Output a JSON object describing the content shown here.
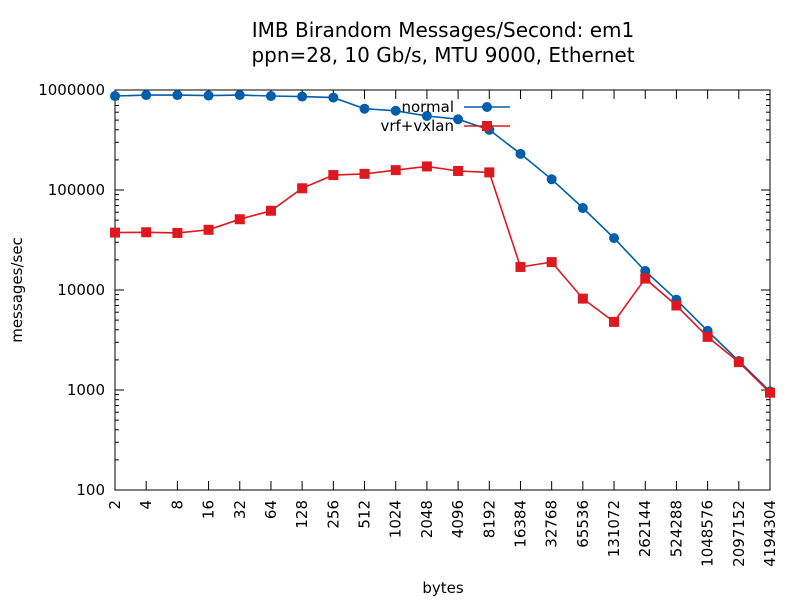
{
  "chart_data": {
    "type": "line",
    "title_line1": "IMB Birandom Messages/Second: em1",
    "title_line2": "ppn=28, 10 Gb/s, MTU 9000, Ethernet",
    "xlabel": "bytes",
    "ylabel": "messages/sec",
    "x_scale": "log2",
    "y_scale": "log10",
    "xlim": [
      2,
      4194304
    ],
    "ylim": [
      100,
      1000000
    ],
    "grid": false,
    "legend_position": "top-right",
    "x": [
      2,
      4,
      8,
      16,
      32,
      64,
      128,
      256,
      512,
      1024,
      2048,
      4096,
      8192,
      16384,
      32768,
      65536,
      131072,
      262144,
      524288,
      1048576,
      2097152,
      4194304
    ],
    "x_tick_labels": [
      "2",
      "4",
      "8",
      "16",
      "32",
      "64",
      "128",
      "256",
      "512",
      "1024",
      "2048",
      "4096",
      "8192",
      "16384",
      "32768",
      "65536",
      "131072",
      "262144",
      "524288",
      "1048576",
      "2097152",
      "4194304"
    ],
    "y_ticks": [
      100,
      1000,
      10000,
      100000,
      1000000
    ],
    "y_tick_labels": [
      "100",
      "1000",
      "10000",
      "100000",
      "1000000"
    ],
    "series": [
      {
        "name": "normal",
        "color": "#005eac",
        "marker": "circle",
        "values": [
          870000,
          890000,
          890000,
          880000,
          890000,
          870000,
          860000,
          840000,
          650000,
          620000,
          550000,
          510000,
          400000,
          230000,
          128000,
          66000,
          33000,
          15500,
          8000,
          3900,
          1950,
          970
        ]
      },
      {
        "name": "vrf+vxlan",
        "color": "#dd181f",
        "marker": "square",
        "values": [
          37500,
          37800,
          37200,
          40000,
          51000,
          62000,
          104000,
          141000,
          145000,
          158000,
          172000,
          155000,
          150000,
          17000,
          19000,
          8200,
          4800,
          13000,
          7000,
          3400,
          1900,
          940
        ]
      }
    ]
  }
}
